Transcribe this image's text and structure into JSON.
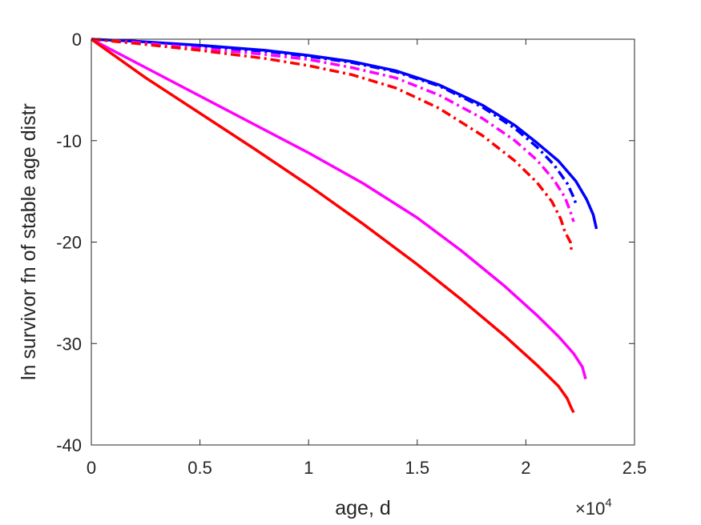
{
  "chart_data": {
    "type": "line",
    "title": "",
    "xlabel": "age, d",
    "ylabel": "ln survivor fn of stable age distr",
    "x_exponent_label": "×10",
    "x_exponent_power": "4",
    "xlim": [
      0,
      25000
    ],
    "ylim": [
      -40,
      0
    ],
    "xticks": [
      0,
      5000,
      10000,
      15000,
      20000,
      25000
    ],
    "xtick_labels": [
      "0",
      "0.5",
      "1",
      "1.5",
      "2",
      "2.5"
    ],
    "yticks": [
      0,
      -10,
      -20,
      -30,
      -40
    ],
    "ytick_labels": [
      "0",
      "-10",
      "-20",
      "-30",
      "-40"
    ],
    "grid": false,
    "series": [
      {
        "color": "#0000ff",
        "style": "solid",
        "points": [
          [
            0,
            0
          ],
          [
            2000,
            -0.2
          ],
          [
            5000,
            -0.6
          ],
          [
            8000,
            -1.1
          ],
          [
            10000,
            -1.6
          ],
          [
            12000,
            -2.2
          ],
          [
            14000,
            -3.1
          ],
          [
            16000,
            -4.5
          ],
          [
            18000,
            -6.5
          ],
          [
            19500,
            -8.5
          ],
          [
            20500,
            -10.2
          ],
          [
            21500,
            -12.0
          ],
          [
            22300,
            -14.0
          ],
          [
            22800,
            -15.8
          ],
          [
            23100,
            -17.3
          ],
          [
            23250,
            -18.7
          ]
        ]
      },
      {
        "color": "#0000ff",
        "style": "dashdot",
        "points": [
          [
            0,
            0
          ],
          [
            2000,
            -0.2
          ],
          [
            5000,
            -0.7
          ],
          [
            8000,
            -1.2
          ],
          [
            10000,
            -1.7
          ],
          [
            12000,
            -2.3
          ],
          [
            14000,
            -3.2
          ],
          [
            16000,
            -4.6
          ],
          [
            18000,
            -6.7
          ],
          [
            19500,
            -8.8
          ],
          [
            20500,
            -10.6
          ],
          [
            21300,
            -12.4
          ],
          [
            21900,
            -14.2
          ],
          [
            22200,
            -15.6
          ],
          [
            22350,
            -16.5
          ]
        ]
      },
      {
        "color": "#ff00ff",
        "style": "dashdot",
        "points": [
          [
            0,
            0
          ],
          [
            2000,
            -0.3
          ],
          [
            5000,
            -0.9
          ],
          [
            8000,
            -1.5
          ],
          [
            10000,
            -2.0
          ],
          [
            12000,
            -2.8
          ],
          [
            14000,
            -3.8
          ],
          [
            16000,
            -5.5
          ],
          [
            18000,
            -7.8
          ],
          [
            19500,
            -10.0
          ],
          [
            20500,
            -11.9
          ],
          [
            21300,
            -13.9
          ],
          [
            21800,
            -15.6
          ],
          [
            22050,
            -17.0
          ],
          [
            22200,
            -18.0
          ]
        ]
      },
      {
        "color": "#ff0000",
        "style": "dashdot",
        "points": [
          [
            0,
            0
          ],
          [
            2000,
            -0.4
          ],
          [
            5000,
            -1.1
          ],
          [
            8000,
            -1.9
          ],
          [
            10000,
            -2.6
          ],
          [
            12000,
            -3.5
          ],
          [
            14000,
            -4.8
          ],
          [
            16000,
            -6.8
          ],
          [
            18000,
            -9.5
          ],
          [
            19500,
            -12.0
          ],
          [
            20500,
            -14.1
          ],
          [
            21200,
            -16.0
          ],
          [
            21600,
            -17.7
          ],
          [
            21800,
            -19.0
          ],
          [
            22050,
            -20.0
          ],
          [
            22100,
            -20.9
          ]
        ]
      },
      {
        "color": "#ff00ff",
        "style": "solid",
        "points": [
          [
            0,
            0
          ],
          [
            2500,
            -2.8
          ],
          [
            5000,
            -5.6
          ],
          [
            7500,
            -8.4
          ],
          [
            10000,
            -11.2
          ],
          [
            12500,
            -14.2
          ],
          [
            15000,
            -17.6
          ],
          [
            17000,
            -20.8
          ],
          [
            19000,
            -24.3
          ],
          [
            20500,
            -27.2
          ],
          [
            21500,
            -29.3
          ],
          [
            22200,
            -31.0
          ],
          [
            22600,
            -32.3
          ],
          [
            22750,
            -33.5
          ]
        ]
      },
      {
        "color": "#ff0000",
        "style": "solid",
        "points": [
          [
            0,
            0
          ],
          [
            2500,
            -3.8
          ],
          [
            5000,
            -7.3
          ],
          [
            7500,
            -10.8
          ],
          [
            10000,
            -14.4
          ],
          [
            12500,
            -18.2
          ],
          [
            15000,
            -22.2
          ],
          [
            17000,
            -25.6
          ],
          [
            19000,
            -29.2
          ],
          [
            20500,
            -32.1
          ],
          [
            21500,
            -34.2
          ],
          [
            21900,
            -35.4
          ],
          [
            22100,
            -36.4
          ],
          [
            22200,
            -36.8
          ]
        ]
      }
    ]
  }
}
